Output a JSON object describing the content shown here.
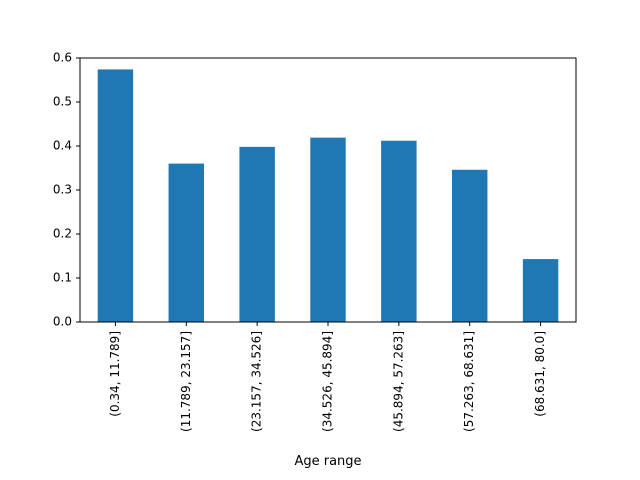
{
  "chart_data": {
    "type": "bar",
    "categories": [
      "(0.34, 11.789]",
      "(11.789, 23.157]",
      "(23.157, 34.526]",
      "(34.526, 45.894]",
      "(45.894, 57.263]",
      "(57.263, 68.631]",
      "(68.631, 80.0]"
    ],
    "values": [
      0.574,
      0.36,
      0.398,
      0.419,
      0.412,
      0.346,
      0.143
    ],
    "xlabel": "Age range",
    "ylabel": "",
    "title": "",
    "ylim": [
      0,
      0.6
    ],
    "yticks": [
      "0.0",
      "0.1",
      "0.2",
      "0.3",
      "0.4",
      "0.5",
      "0.6"
    ],
    "grid": false,
    "bar_color": "#1f77b4"
  }
}
